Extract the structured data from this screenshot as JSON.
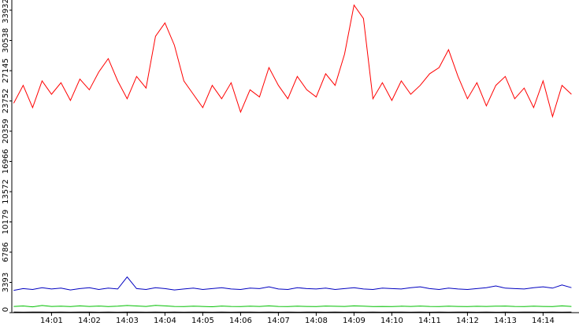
{
  "chart_data": {
    "type": "line",
    "x": [
      840,
      840.25,
      840.5,
      840.75,
      841,
      841.25,
      841.5,
      841.75,
      842,
      842.25,
      842.5,
      842.75,
      843,
      843.25,
      843.5,
      843.75,
      844,
      844.25,
      844.5,
      844.75,
      845,
      845.25,
      845.5,
      845.75,
      846,
      846.25,
      846.5,
      846.75,
      847,
      847.25,
      847.5,
      847.75,
      848,
      848.25,
      848.5,
      848.75,
      849,
      849.25,
      849.5,
      849.75,
      850,
      850.25,
      850.5,
      850.75,
      851,
      851.25,
      851.5,
      851.75,
      852,
      852.25,
      852.5,
      852.75,
      853,
      853.25,
      853.5,
      853.75,
      854,
      854.25,
      854.5,
      854.75
    ],
    "series": [
      {
        "color": "#ff0000",
        "values": [
          23500,
          25500,
          23000,
          26000,
          24500,
          25800,
          23800,
          26200,
          25000,
          27000,
          28500,
          26000,
          24000,
          26500,
          25200,
          31000,
          32500,
          30000,
          26000,
          24500,
          23000,
          25500,
          24000,
          25800,
          22500,
          25000,
          24200,
          27500,
          25500,
          24000,
          26500,
          25000,
          24200,
          26800,
          25500,
          29000,
          34500,
          33000,
          24000,
          25800,
          23800,
          26000,
          24500,
          25500,
          26800,
          27500,
          29500,
          26500,
          24000,
          25800,
          23200,
          25500,
          26500,
          24000,
          25200,
          23000,
          26000,
          22000,
          25500,
          24500
        ]
      },
      {
        "color": "#0000c0",
        "values": [
          2500,
          2700,
          2600,
          2800,
          2650,
          2750,
          2550,
          2700,
          2800,
          2600,
          2750,
          2650,
          4000,
          2700,
          2600,
          2800,
          2700,
          2550,
          2650,
          2750,
          2600,
          2700,
          2800,
          2650,
          2600,
          2750,
          2700,
          2900,
          2650,
          2600,
          2800,
          2700,
          2650,
          2750,
          2600,
          2700,
          2800,
          2650,
          2600,
          2750,
          2700,
          2650,
          2800,
          2900,
          2700,
          2600,
          2750,
          2650,
          2600,
          2700,
          2800,
          3000,
          2750,
          2700,
          2650,
          2800,
          2900,
          2750,
          3100,
          2800
        ]
      },
      {
        "color": "#00c000",
        "values": [
          700,
          750,
          650,
          800,
          700,
          720,
          680,
          760,
          700,
          740,
          690,
          720,
          800,
          750,
          700,
          820,
          760,
          700,
          680,
          720,
          700,
          660,
          740,
          700,
          690,
          720,
          700,
          760,
          700,
          680,
          720,
          700,
          690,
          740,
          710,
          700,
          760,
          720,
          690,
          700,
          680,
          720,
          700,
          740,
          700,
          690,
          720,
          700,
          680,
          710,
          700,
          720,
          740,
          700,
          690,
          720,
          700,
          680,
          760,
          700
        ]
      },
      {
        "color": "#000000",
        "values": [
          60,
          50,
          70,
          60,
          50,
          60,
          55,
          65,
          60,
          50,
          60,
          55,
          70,
          60,
          50,
          60,
          55,
          60,
          50,
          65,
          60,
          55,
          60,
          50,
          60,
          65,
          55,
          60,
          50,
          60,
          55,
          60,
          65,
          50,
          60,
          55,
          60,
          50,
          60,
          55,
          65,
          60,
          50,
          60,
          55,
          60,
          50,
          65,
          60,
          55,
          60,
          50,
          60,
          55,
          60,
          65,
          50,
          60,
          55,
          60
        ]
      }
    ],
    "xlim": [
      839.95,
      854.95
    ],
    "xticks": [
      {
        "value": 841,
        "label": "14:01"
      },
      {
        "value": 842,
        "label": "14:02"
      },
      {
        "value": 843,
        "label": "14:03"
      },
      {
        "value": 844,
        "label": "14:04"
      },
      {
        "value": 845,
        "label": "14:05"
      },
      {
        "value": 846,
        "label": "14:06"
      },
      {
        "value": 847,
        "label": "14:07"
      },
      {
        "value": 848,
        "label": "14:08"
      },
      {
        "value": 849,
        "label": "14:09"
      },
      {
        "value": 850,
        "label": "14:10"
      },
      {
        "value": 851,
        "label": "14:11"
      },
      {
        "value": 852,
        "label": "14:12"
      },
      {
        "value": 853,
        "label": "14:13"
      },
      {
        "value": 854,
        "label": "14:14"
      }
    ],
    "ylim": [
      0,
      35076
    ],
    "yticks": [
      0,
      3393,
      6786,
      10179,
      13572,
      16966,
      20359,
      23752,
      27145,
      30538,
      33932
    ]
  }
}
